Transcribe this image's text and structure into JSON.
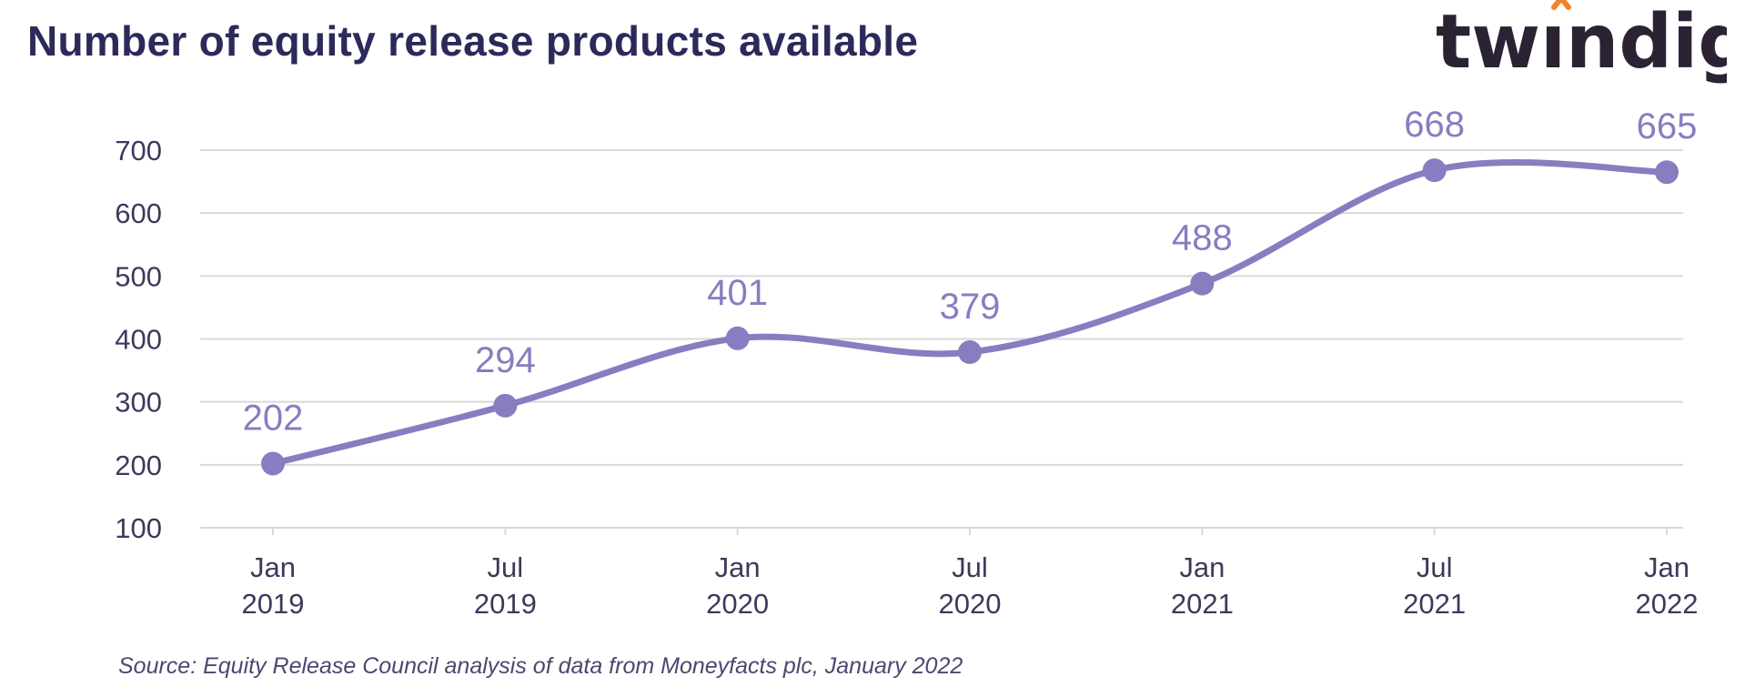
{
  "title": "Number of equity release products available",
  "brand": {
    "logo_text": "twindig",
    "logo_color": "#2b2233",
    "accent_color": "#f0842c"
  },
  "source": "Source: Equity Release Council analysis of data from Moneyfacts plc, January 2022",
  "colors": {
    "series": "#8a7cc0",
    "grid": "#d9d9d9",
    "axis_text": "#3c3a5c",
    "title": "#2b2a5a"
  },
  "chart_data": {
    "type": "line",
    "title": "Number of equity release products available",
    "xlabel": "",
    "ylabel": "",
    "categories": [
      [
        "Jan",
        "2019"
      ],
      [
        "Jul",
        "2019"
      ],
      [
        "Jan",
        "2020"
      ],
      [
        "Jul",
        "2020"
      ],
      [
        "Jan",
        "2021"
      ],
      [
        "Jul",
        "2021"
      ],
      [
        "Jan",
        "2022"
      ]
    ],
    "series": [
      {
        "values": [
          202,
          294,
          401,
          379,
          488,
          668,
          665
        ]
      }
    ],
    "data_labels": [
      "202",
      "294",
      "401",
      "379",
      "488",
      "668",
      "665"
    ],
    "ylim": [
      100,
      700
    ],
    "yticks": [
      100,
      200,
      300,
      400,
      500,
      600,
      700
    ],
    "grid": true,
    "smooth": true,
    "markers": true
  }
}
